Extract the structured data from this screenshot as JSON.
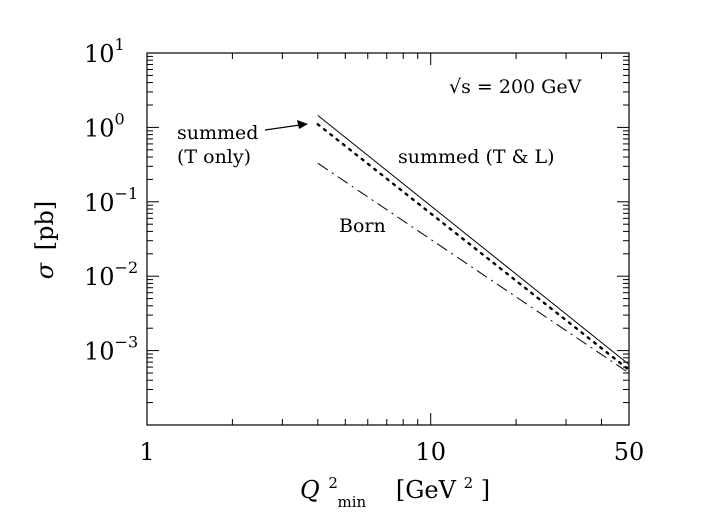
{
  "chart_data": {
    "type": "line",
    "x_scale": "log",
    "y_scale": "log",
    "xlim": [
      1,
      50
    ],
    "ylim": [
      0.0001,
      10
    ],
    "grid": false,
    "xlabel": {
      "main": "Q",
      "sup": "2",
      "sub": "min",
      "unit_open": "[GeV",
      "unit_sup": "2",
      "unit_close": "]"
    },
    "ylabel": {
      "symbol": "σ",
      "unit": "[pb]"
    },
    "x_ticks": [
      {
        "value": 1,
        "label": "1"
      },
      {
        "value": 10,
        "label": "10"
      },
      {
        "value": 50,
        "label": "50"
      }
    ],
    "y_ticks": [
      {
        "value": 10,
        "base": "10",
        "exp": "1"
      },
      {
        "value": 1,
        "base": "10",
        "exp": "0"
      },
      {
        "value": 0.1,
        "base": "10",
        "exp": "−1"
      },
      {
        "value": 0.01,
        "base": "10",
        "exp": "−2"
      },
      {
        "value": 0.001,
        "base": "10",
        "exp": "−3"
      }
    ],
    "series": [
      {
        "key": "tl",
        "style": "solid",
        "x": [
          4,
          50
        ],
        "y": [
          1.45,
          0.00065
        ]
      },
      {
        "key": "t",
        "style": "dotted",
        "x": [
          4,
          50
        ],
        "y": [
          1.1,
          0.00055
        ]
      },
      {
        "key": "born",
        "style": "dashdot",
        "x": [
          4,
          50
        ],
        "y": [
          0.33,
          0.0005
        ]
      }
    ],
    "annotations": {
      "energy": "√s = 200 GeV",
      "summed_t_line1": "summed",
      "summed_t_line2": "(T only)",
      "summed_tl": "summed (T & L)",
      "born": "Born"
    }
  }
}
